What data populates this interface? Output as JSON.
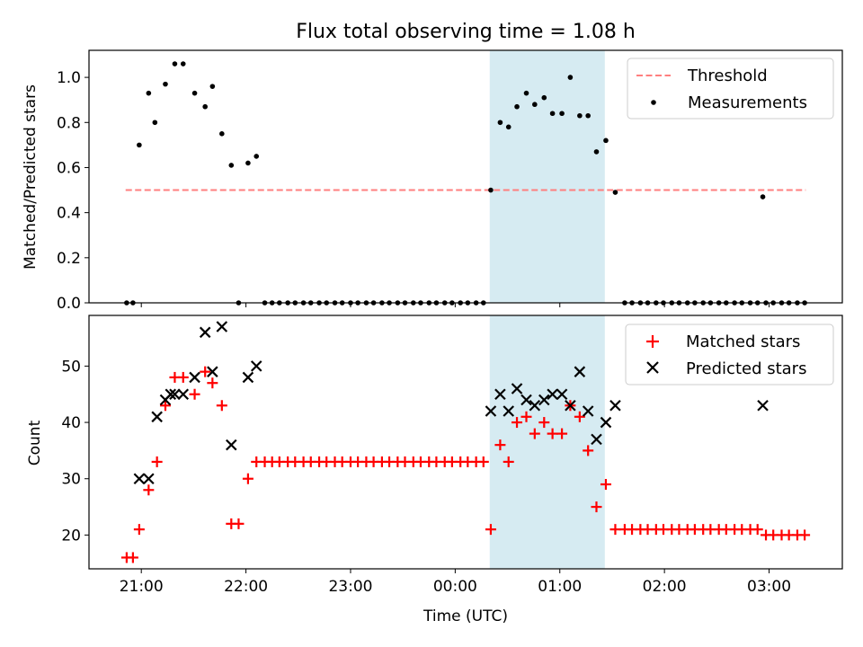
{
  "figure_title": "Flux total observing time = 1.08 h",
  "x_axis": {
    "label": "Time (UTC)",
    "ticks": [
      "21:00",
      "22:00",
      "23:00",
      "00:00",
      "01:00",
      "02:00",
      "03:00"
    ]
  },
  "colors": {
    "threshold": "#ff7f7f",
    "measurements": "#000000",
    "matched": "#ff0000",
    "predicted": "#000000",
    "shade": "#add8e6"
  },
  "chart_data": [
    {
      "type": "scatter",
      "title": "Flux total observing time = 1.08 h",
      "ylabel": "Matched/Predicted stars",
      "ylim": [
        0,
        1.12
      ],
      "yticks": [
        "0.0",
        "0.2",
        "0.4",
        "0.6",
        "0.8",
        "1.0"
      ],
      "xlim_hours": [
        20.5,
        27.7
      ],
      "shaded_interval_hours": [
        24.33,
        25.43
      ],
      "legend": {
        "position": "upper-right",
        "entries": [
          "Threshold",
          "Measurements"
        ]
      },
      "threshold": {
        "name": "Threshold",
        "value": 0.5,
        "x_range_hours": [
          20.85,
          27.35
        ]
      },
      "series": [
        {
          "name": "Measurements",
          "x_hours": [
            20.86,
            20.92,
            20.98,
            21.07,
            21.13,
            21.23,
            21.32,
            21.4,
            21.51,
            21.61,
            21.68,
            21.77,
            21.86,
            21.93,
            22.02,
            22.1,
            22.18,
            22.25,
            22.32,
            22.4,
            22.47,
            22.55,
            22.62,
            22.7,
            22.77,
            22.85,
            22.92,
            23.0,
            23.07,
            23.15,
            23.22,
            23.3,
            23.37,
            23.45,
            23.52,
            23.6,
            23.67,
            23.75,
            23.82,
            23.9,
            23.97,
            24.05,
            24.12,
            24.2,
            24.27,
            24.34,
            24.43,
            24.51,
            24.59,
            24.68,
            24.76,
            24.85,
            24.93,
            25.02,
            25.1,
            25.19,
            25.27,
            25.35,
            25.44,
            25.53,
            25.62,
            25.69,
            25.77,
            25.84,
            25.92,
            25.99,
            26.07,
            26.14,
            26.22,
            26.29,
            26.37,
            26.44,
            26.52,
            26.59,
            26.67,
            26.74,
            26.82,
            26.89,
            26.97,
            27.04,
            27.12,
            27.19,
            27.27,
            27.34,
            26.94
          ],
          "y": [
            0,
            0,
            0.7,
            0.93,
            0.8,
            0.97,
            1.06,
            1.06,
            0.93,
            0.87,
            0.96,
            0.75,
            0.61,
            0,
            0.62,
            0.65,
            0,
            0,
            0,
            0,
            0,
            0,
            0,
            0,
            0,
            0,
            0,
            0,
            0,
            0,
            0,
            0,
            0,
            0,
            0,
            0,
            0,
            0,
            0,
            0,
            0,
            0,
            0,
            0,
            0,
            0.5,
            0.8,
            0.78,
            0.87,
            0.93,
            0.88,
            0.91,
            0.84,
            0.84,
            1.0,
            0.83,
            0.83,
            0.67,
            0.72,
            0.49,
            0,
            0,
            0,
            0,
            0,
            0,
            0,
            0,
            0,
            0,
            0,
            0,
            0,
            0,
            0,
            0,
            0,
            0,
            0,
            0,
            0,
            0,
            0,
            0,
            0.47
          ]
        }
      ]
    },
    {
      "type": "scatter",
      "ylabel": "Count",
      "ylim": [
        14,
        59
      ],
      "yticks": [
        "20",
        "30",
        "40",
        "50"
      ],
      "xlim_hours": [
        20.5,
        27.7
      ],
      "shaded_interval_hours": [
        24.33,
        25.43
      ],
      "legend": {
        "position": "upper-right",
        "entries": [
          "Matched stars",
          "Predicted stars"
        ]
      },
      "series": [
        {
          "name": "Matched stars",
          "marker": "plus",
          "x_hours": [
            20.86,
            20.92,
            20.98,
            21.07,
            21.15,
            21.23,
            21.32,
            21.4,
            21.51,
            21.61,
            21.68,
            21.77,
            21.86,
            21.93,
            22.02,
            22.1,
            22.18,
            22.25,
            22.32,
            22.4,
            22.47,
            22.55,
            22.62,
            22.7,
            22.77,
            22.85,
            22.92,
            23.0,
            23.07,
            23.15,
            23.22,
            23.3,
            23.37,
            23.45,
            23.52,
            23.6,
            23.67,
            23.75,
            23.82,
            23.9,
            23.97,
            24.05,
            24.12,
            24.2,
            24.27,
            24.34,
            24.43,
            24.51,
            24.59,
            24.68,
            24.76,
            24.85,
            24.93,
            25.02,
            25.1,
            25.19,
            25.27,
            25.35,
            25.44,
            25.53,
            25.62,
            25.69,
            25.77,
            25.84,
            25.92,
            25.99,
            26.07,
            26.14,
            26.22,
            26.29,
            26.37,
            26.44,
            26.52,
            26.59,
            26.67,
            26.74,
            26.82,
            26.89,
            26.97,
            27.04,
            27.12,
            27.19,
            27.27,
            27.34
          ],
          "y": [
            16,
            16,
            21,
            28,
            33,
            43,
            48,
            48,
            45,
            49,
            47,
            43,
            22,
            22,
            30,
            33,
            33,
            33,
            33,
            33,
            33,
            33,
            33,
            33,
            33,
            33,
            33,
            33,
            33,
            33,
            33,
            33,
            33,
            33,
            33,
            33,
            33,
            33,
            33,
            33,
            33,
            33,
            33,
            33,
            33,
            21,
            36,
            33,
            40,
            41,
            38,
            40,
            38,
            38,
            43,
            41,
            35,
            25,
            29,
            21,
            21,
            21,
            21,
            21,
            21,
            21,
            21,
            21,
            21,
            21,
            21,
            21,
            21,
            21,
            21,
            21,
            21,
            21,
            20,
            20,
            20,
            20,
            20,
            20
          ]
        },
        {
          "name": "Predicted stars",
          "marker": "x",
          "x_hours": [
            20.98,
            21.07,
            21.15,
            21.23,
            21.28,
            21.32,
            21.4,
            21.51,
            21.61,
            21.68,
            21.77,
            21.86,
            22.02,
            22.1,
            24.34,
            24.43,
            24.51,
            24.59,
            24.68,
            24.76,
            24.85,
            24.93,
            25.02,
            25.1,
            25.19,
            25.27,
            25.35,
            25.44,
            25.53,
            26.94
          ],
          "y": [
            30,
            30,
            41,
            44,
            45,
            45,
            45,
            48,
            56,
            49,
            57,
            36,
            48,
            50,
            42,
            45,
            42,
            46,
            44,
            43,
            44,
            45,
            45,
            43,
            49,
            42,
            37,
            40,
            43,
            43
          ]
        }
      ]
    }
  ]
}
